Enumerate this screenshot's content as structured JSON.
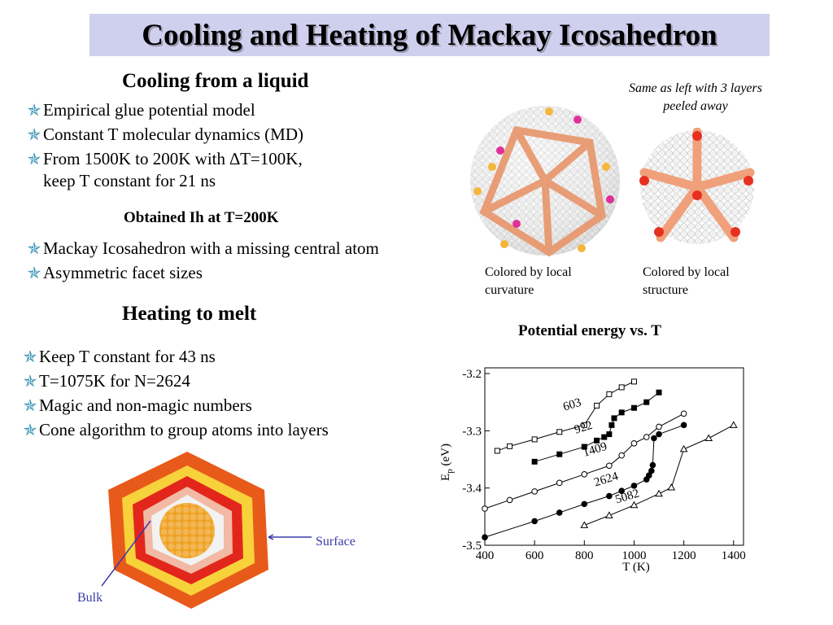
{
  "title": "Cooling and Heating of Mackay Icosahedron",
  "cooling": {
    "heading": "Cooling from a liquid",
    "bullets": [
      "Empirical glue potential model",
      "Constant T molecular dynamics (MD)",
      "From 1500K to 200K with ∆T=100K,"
    ],
    "continuation": "keep T constant for 21 ns",
    "result": "Obtained Ih at T=200K",
    "bullets2": [
      "Mackay Icosahedron with a missing central atom",
      "Asymmetric facet sizes"
    ]
  },
  "heating": {
    "heading": "Heating to melt",
    "bullets": [
      "Keep T constant for 43 ns",
      "T=1075K for N=2624",
      "Magic and non-magic numbers",
      "Cone algorithm to group atoms into layers"
    ]
  },
  "images": {
    "peeled_note": "Same as left with 3 layers peeled away",
    "caption_left": "Colored by local curvature",
    "caption_right": "Colored by local structure",
    "surface_label": "Surface",
    "bulk_label": "Bulk"
  },
  "colors": {
    "star": "#2f8fb0",
    "title_bg": "#cfd0ee",
    "label_blue": "#3a3aa8"
  },
  "chart_data": {
    "type": "line",
    "title": "Potential energy vs. T",
    "xlabel": "T (K)",
    "ylabel": "E_p (eV)",
    "xlim": [
      400,
      1440
    ],
    "ylim": [
      -3.5,
      -3.19
    ],
    "xticks": [
      400,
      600,
      800,
      1000,
      1200,
      1400
    ],
    "yticks": [
      -3.2,
      -3.3,
      -3.4,
      -3.5
    ],
    "grid": false,
    "legend": "none",
    "series": [
      {
        "name": "603",
        "marker": "open-square",
        "x": [
          450,
          500,
          600,
          700,
          800,
          850,
          900,
          950,
          1000
        ],
        "y": [
          -3.335,
          -3.327,
          -3.315,
          -3.302,
          -3.29,
          -3.256,
          -3.236,
          -3.224,
          -3.214
        ]
      },
      {
        "name": "922",
        "marker": "filled-square",
        "x": [
          600,
          700,
          800,
          850,
          880,
          900,
          910,
          920,
          950,
          1000,
          1050,
          1100
        ],
        "y": [
          -3.354,
          -3.341,
          -3.328,
          -3.317,
          -3.311,
          -3.306,
          -3.29,
          -3.278,
          -3.268,
          -3.26,
          -3.25,
          -3.233
        ]
      },
      {
        "name": "1409",
        "marker": "open-circle",
        "x": [
          400,
          500,
          600,
          700,
          800,
          900,
          950,
          1000,
          1050,
          1100,
          1200
        ],
        "y": [
          -3.436,
          -3.421,
          -3.406,
          -3.391,
          -3.376,
          -3.361,
          -3.343,
          -3.322,
          -3.311,
          -3.293,
          -3.27
        ]
      },
      {
        "name": "2624",
        "marker": "filled-circle",
        "x": [
          400,
          600,
          700,
          800,
          900,
          950,
          1000,
          1050,
          1060,
          1070,
          1075,
          1080,
          1100,
          1200
        ],
        "y": [
          -3.486,
          -3.458,
          -3.443,
          -3.428,
          -3.414,
          -3.405,
          -3.396,
          -3.385,
          -3.378,
          -3.37,
          -3.36,
          -3.313,
          -3.306,
          -3.29
        ]
      },
      {
        "name": "5082",
        "marker": "open-triangle",
        "x": [
          800,
          900,
          1000,
          1100,
          1150,
          1200,
          1300,
          1400
        ],
        "y": [
          -3.465,
          -3.448,
          -3.43,
          -3.41,
          -3.399,
          -3.332,
          -3.313,
          -3.29
        ]
      }
    ],
    "annotations": [
      {
        "text": "603",
        "x": 720,
        "y": -3.265,
        "angle": -17
      },
      {
        "text": "922",
        "x": 765,
        "y": -3.305,
        "angle": -17
      },
      {
        "text": "1409",
        "x": 800,
        "y": -3.345,
        "angle": -17
      },
      {
        "text": "2624",
        "x": 845,
        "y": -3.397,
        "angle": -17
      },
      {
        "text": "5082",
        "x": 930,
        "y": -3.427,
        "angle": -17
      }
    ]
  }
}
